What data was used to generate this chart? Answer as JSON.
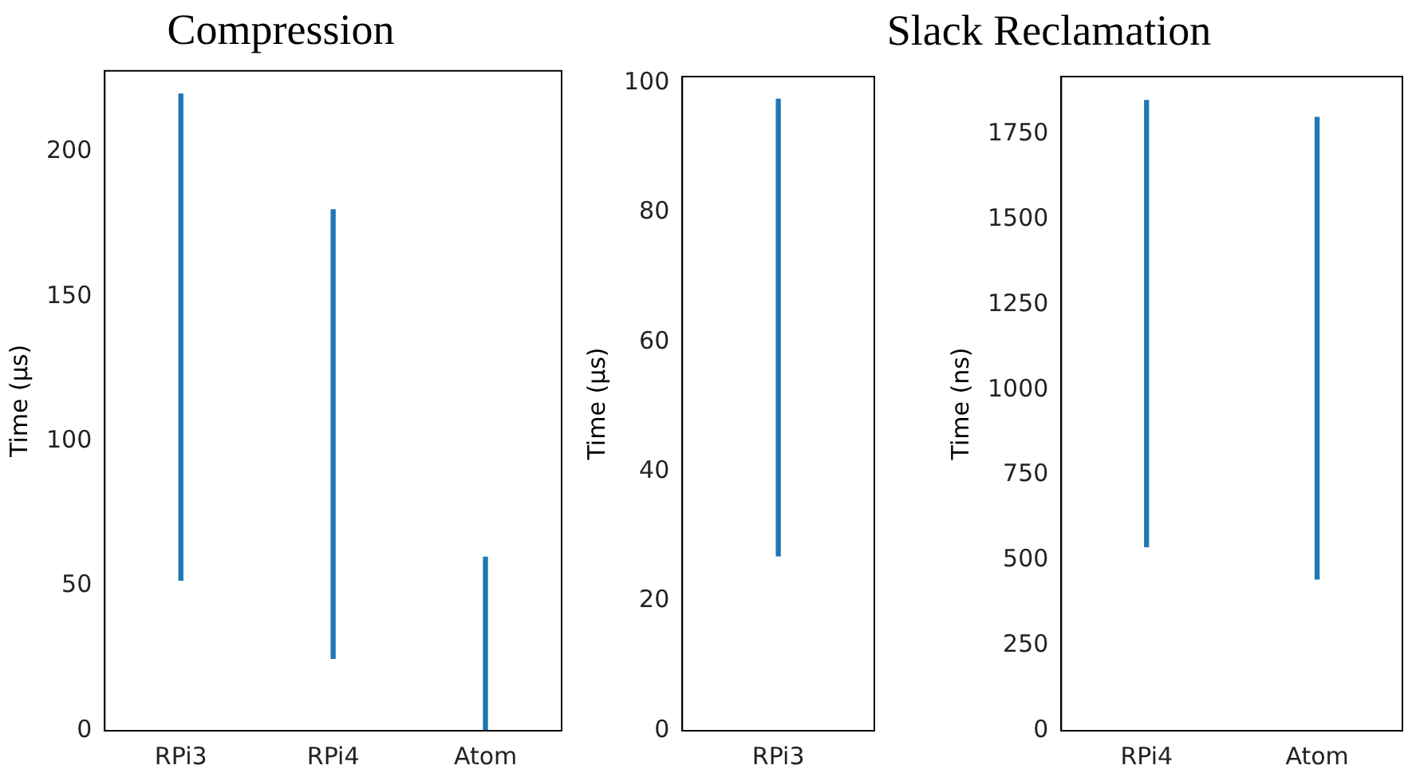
{
  "chart_data": [
    {
      "type": "bar",
      "title": "Compression",
      "ylabel": "Time (μs)",
      "categories": [
        "RPi3",
        "RPi4",
        "Atom"
      ],
      "base": [
        52,
        25,
        0
      ],
      "values": [
        168,
        155,
        60
      ],
      "color": "#1f77b4",
      "ylim": [
        0,
        228
      ],
      "yticks": [
        0,
        50,
        100,
        150,
        200
      ]
    },
    {
      "type": "bar",
      "title": "Slack Reclamation",
      "ylabel": "Time (μs)",
      "categories": [
        "RPi3"
      ],
      "base": [
        27
      ],
      "values": [
        70.5
      ],
      "color": "#1f77b4",
      "ylim": [
        0,
        101
      ],
      "yticks": [
        0,
        20,
        40,
        60,
        80,
        100
      ]
    },
    {
      "type": "bar",
      "ylabel": "Time (ns)",
      "categories": [
        "RPi4",
        "Atom"
      ],
      "base": [
        540,
        445
      ],
      "values": [
        1310,
        1355
      ],
      "color": "#1f77b4",
      "ylim": [
        0,
        1920
      ],
      "yticks": [
        0,
        250,
        500,
        750,
        1000,
        1250,
        1500,
        1750
      ]
    }
  ]
}
